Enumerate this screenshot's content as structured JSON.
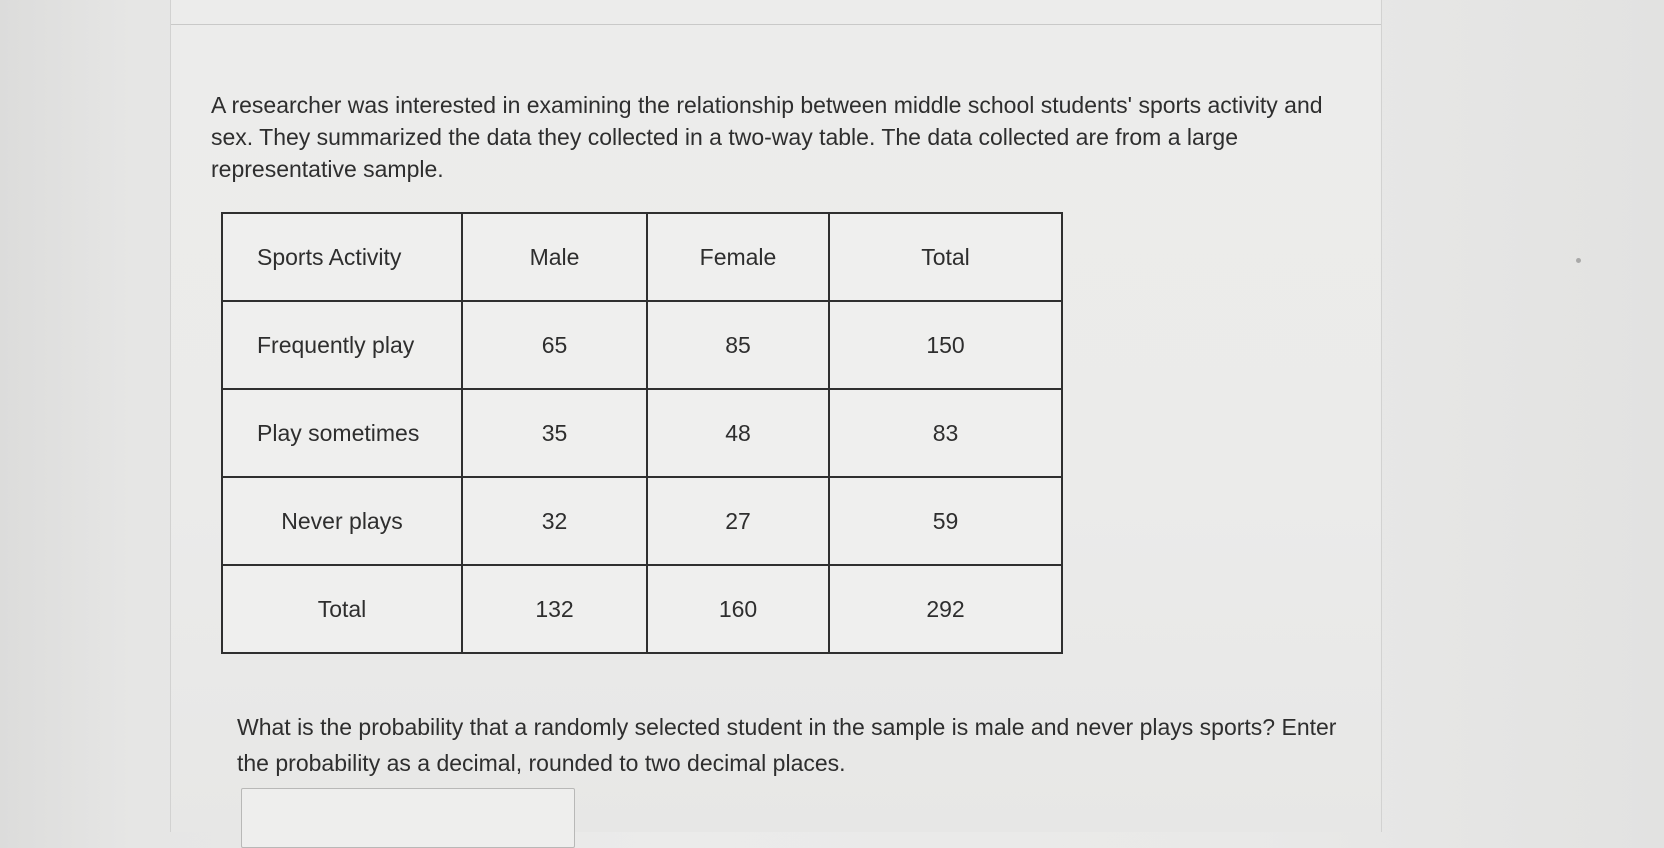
{
  "problem": {
    "intro": "A researcher was interested in examining the relationship between middle school students' sports activity and sex. They summarized the data they collected in a two-way table. The data collected are from a large representative sample.",
    "question": "What is the probability that a randomly selected student in the sample is male and never plays sports? Enter the probability as a decimal, rounded to two decimal places."
  },
  "table": {
    "headers": [
      "Sports Activity",
      "Male",
      "Female",
      "Total"
    ],
    "rows": [
      {
        "label": "Frequently play",
        "male": "65",
        "female": "85",
        "total": "150"
      },
      {
        "label": "Play sometimes",
        "male": "35",
        "female": "48",
        "total": "83"
      },
      {
        "label": "Never plays",
        "male": "32",
        "female": "27",
        "total": "59"
      },
      {
        "label": "Total",
        "male": "132",
        "female": "160",
        "total": "292"
      }
    ]
  },
  "answer": {
    "value": "",
    "placeholder": ""
  }
}
